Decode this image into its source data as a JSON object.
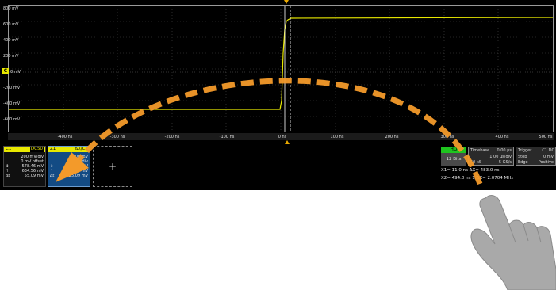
{
  "y_axis": {
    "labels": [
      "800 mV",
      "600 mV",
      "400 mV",
      "200 mV",
      "0 mV",
      "-200 mV",
      "-400 mV",
      "-600 mV"
    ]
  },
  "x_axis": {
    "labels": [
      "-400 ns",
      "-300 ns",
      "-200 ns",
      "-100 ns",
      "0 ns",
      "100 ns",
      "200 ns",
      "300 ns",
      "400 ns",
      "500 ns"
    ]
  },
  "channel_marker": "C",
  "c1_descriptor": {
    "name": "C1",
    "badge": "DC50",
    "rows": [
      [
        "",
        "200 mV/div"
      ],
      [
        "",
        "0 mV offset"
      ],
      [
        "↕",
        "578.46 mV"
      ],
      [
        "↑",
        "634.56 mV"
      ],
      [
        "Δt",
        "55.09 mV"
      ]
    ]
  },
  "z1_descriptor": {
    "name": "Z1",
    "badge": "ΔX/C1",
    "rows": [
      [
        "",
        "200 mV"
      ],
      [
        "",
        "100 ns/div"
      ],
      [
        "↕",
        "578.46 mV"
      ],
      [
        "↑",
        "634.56 mV"
      ],
      [
        "Δt",
        "55.09 mV"
      ]
    ]
  },
  "add_descriptor": "+",
  "hd_badge": "HD",
  "bits": "12 Bits",
  "timebase": {
    "title": "Timebase",
    "delay": "0.00 µs",
    "rows": [
      [
        "",
        "1.00 µs/div"
      ],
      [
        "50 kS",
        "5 GS/s"
      ]
    ]
  },
  "trigger": {
    "title": "Trigger",
    "source": "C1 DC",
    "rows": [
      [
        "Stop",
        "0 mV"
      ],
      [
        "Edge",
        "Positive"
      ]
    ]
  },
  "cursor_readout": {
    "line1": "X1= 11.0 ns  ΔX=  483.0 ns",
    "line2": "X2= 494.0 ns  1/ΔX= 2.0704 MHz"
  },
  "colors": {
    "trace": "#e8e800",
    "arrow": "#f39a2a",
    "grid_dot": "#555555"
  }
}
